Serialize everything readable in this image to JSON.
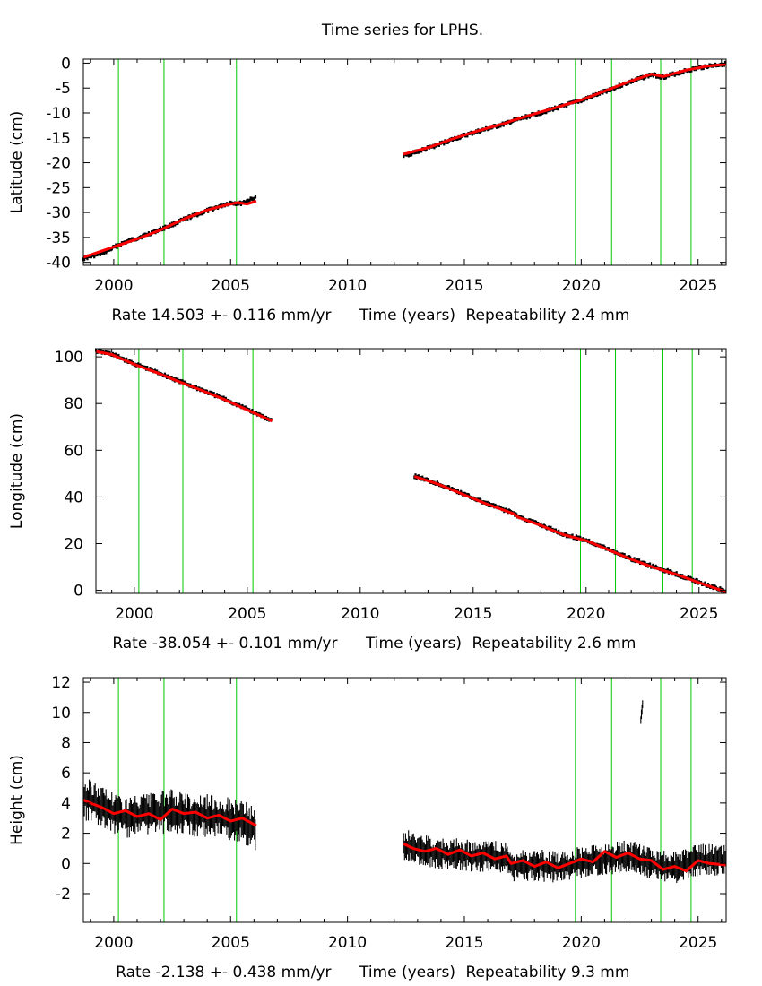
{
  "title": "Time series for LPHS.",
  "colors": {
    "observations": "#000000",
    "model": "#ff0000",
    "events": "#00c800",
    "axes": "#000000"
  },
  "chart_data": [
    {
      "type": "scatter",
      "panel": "latitude",
      "ylabel": "Latitude (cm)",
      "xlabel": "Time (years)",
      "rate_text": "Rate 14.503 +- 0.116 mm/yr",
      "repeat_text": "Repeatability 2.4 mm",
      "xlim": [
        1998.7,
        2026.2
      ],
      "ylim": [
        -40.6,
        0.8
      ],
      "xticks": [
        2000,
        2005,
        2010,
        2015,
        2020,
        2025
      ],
      "yticks": [
        0,
        -5,
        -10,
        -15,
        -20,
        -25,
        -30,
        -35,
        -40
      ],
      "event_lines": [
        2000.2,
        2002.15,
        2005.25,
        2019.75,
        2021.3,
        2023.4,
        2024.7
      ],
      "series": [
        {
          "name": "observations",
          "segments": [
            {
              "x": [
                1998.7,
                1999.5,
                2000.3,
                2001.2,
                2002.2,
                2003.2,
                2004.2,
                2005.0,
                2005.4,
                2006.1
              ],
              "y": [
                -39.2,
                -38.2,
                -36.3,
                -34.8,
                -33.0,
                -31.0,
                -29.3,
                -28.0,
                -28.2,
                -27.0
              ]
            },
            {
              "x": [
                2012.4,
                2013.5,
                2014.5,
                2015.5,
                2016.8,
                2017.0,
                2018.0,
                2019.0,
                2020.0,
                2021.0,
                2022.0,
                2023.0,
                2023.5,
                2024.5,
                2025.4,
                2026.2
              ],
              "y": [
                -18.6,
                -17.0,
                -15.3,
                -13.8,
                -12.1,
                -11.7,
                -10.3,
                -8.9,
                -7.5,
                -5.7,
                -3.9,
                -2.3,
                -2.8,
                -1.5,
                -0.6,
                -0.1
              ]
            }
          ]
        },
        {
          "name": "model",
          "segments": [
            {
              "x": [
                1998.7,
                2000.0,
                2001.0,
                2002.0,
                2003.0,
                2004.0,
                2004.8,
                2005.3,
                2005.7,
                2006.1
              ],
              "y": [
                -39.0,
                -36.9,
                -35.3,
                -33.5,
                -31.3,
                -29.5,
                -28.5,
                -28.0,
                -28.3,
                -27.7
              ]
            },
            {
              "x": [
                2012.4,
                2013.5,
                2014.5,
                2015.5,
                2016.8,
                2017.0,
                2018.0,
                2019.0,
                2020.0,
                2021.0,
                2022.0,
                2023.0,
                2023.5,
                2024.5,
                2025.4,
                2026.2
              ],
              "y": [
                -18.3,
                -16.9,
                -15.2,
                -13.7,
                -12.0,
                -11.6,
                -10.2,
                -8.8,
                -7.4,
                -5.6,
                -3.8,
                -2.2,
                -2.7,
                -1.4,
                -0.6,
                -0.2
              ]
            }
          ]
        }
      ]
    },
    {
      "type": "scatter",
      "panel": "longitude",
      "ylabel": "Longitude (cm)",
      "xlabel": "Time (years)",
      "rate_text": "Rate -38.054 +- 0.101 mm/yr",
      "repeat_text": "Repeatability 2.6 mm",
      "xlim": [
        1998.3,
        2026.2
      ],
      "ylim": [
        -1.3,
        103.5
      ],
      "xticks": [
        2000,
        2005,
        2010,
        2015,
        2020,
        2025
      ],
      "yticks": [
        0,
        20,
        40,
        60,
        80,
        100
      ],
      "event_lines": [
        2000.2,
        2002.15,
        2005.25,
        2019.75,
        2021.3,
        2023.4,
        2024.7
      ],
      "series": [
        {
          "name": "observations",
          "segments": [
            {
              "x": [
                1998.3,
                1999.0,
                2000.0,
                2001.0,
                2002.0,
                2003.0,
                2004.0,
                2005.0,
                2006.1
              ],
              "y": [
                102.5,
                101.2,
                97.0,
                93.4,
                89.5,
                85.8,
                81.9,
                77.5,
                72.7
              ]
            },
            {
              "x": [
                2012.4,
                2013.5,
                2014.5,
                2015.5,
                2016.8,
                2017.0,
                2018.0,
                2019.0,
                2020.0,
                2021.0,
                2022.0,
                2023.0,
                2024.0,
                2025.0,
                2026.2
              ],
              "y": [
                49.0,
                45.5,
                41.5,
                37.5,
                33.0,
                31.5,
                28.0,
                24.0,
                21.5,
                17.5,
                13.5,
                10.0,
                7.0,
                3.5,
                -0.5
              ]
            }
          ]
        },
        {
          "name": "model",
          "segments": [
            {
              "x": [
                1998.3,
                1999.0,
                2000.0,
                2001.0,
                2002.0,
                2003.0,
                2004.0,
                2005.0,
                2006.1
              ],
              "y": [
                102.3,
                101.0,
                96.8,
                93.2,
                89.3,
                85.6,
                81.7,
                77.3,
                72.5
              ]
            },
            {
              "x": [
                2012.4,
                2013.5,
                2014.5,
                2015.5,
                2016.8,
                2017.0,
                2018.0,
                2019.0,
                2020.0,
                2021.0,
                2022.0,
                2023.0,
                2024.0,
                2025.0,
                2026.2
              ],
              "y": [
                48.8,
                45.3,
                41.3,
                37.3,
                32.8,
                31.3,
                27.8,
                23.8,
                21.3,
                17.3,
                13.3,
                9.8,
                6.8,
                3.3,
                -0.7
              ]
            }
          ]
        }
      ]
    },
    {
      "type": "scatter",
      "panel": "height",
      "ylabel": "Height (cm)",
      "xlabel": "Time (years)",
      "rate_text": "Rate -2.138 +- 0.438 mm/yr",
      "repeat_text": "Repeatability 9.3 mm",
      "xlim": [
        1998.7,
        2026.2
      ],
      "ylim": [
        -3.9,
        12.3
      ],
      "xticks": [
        2000,
        2005,
        2010,
        2015,
        2020,
        2025
      ],
      "yticks": [
        12,
        10,
        8,
        6,
        4,
        2,
        0,
        -2
      ],
      "event_lines": [
        2000.2,
        2002.15,
        2005.25,
        2019.75,
        2021.3,
        2023.4,
        2024.7
      ],
      "series": [
        {
          "name": "observations",
          "segments": [
            {
              "x": [
                1998.7,
                1999.5,
                2000.5,
                2001.5,
                2002.5,
                2003.5,
                2004.5,
                2005.5,
                2006.1
              ],
              "y": [
                4.3,
                3.8,
                3.0,
                3.2,
                3.5,
                3.2,
                3.1,
                2.8,
                2.2
              ],
              "spread": 1.2
            },
            {
              "x": [
                2012.4,
                2013.5,
                2014.5,
                2015.5,
                2016.8,
                2017.0,
                2018.0,
                2019.0,
                2020.0,
                2021.0,
                2022.0,
                2023.0,
                2024.0,
                2025.0,
                2026.2
              ],
              "y": [
                1.2,
                0.8,
                0.6,
                0.5,
                0.4,
                -0.2,
                -0.1,
                -0.3,
                0.1,
                0.3,
                0.5,
                0.0,
                -0.3,
                0.2,
                0.3
              ],
              "spread": 0.9
            },
            {
              "x": [
                2022.55,
                2022.6,
                2022.65
              ],
              "y": [
                9.5,
                10.2,
                10.8
              ],
              "spread": 0.3
            }
          ]
        },
        {
          "name": "model",
          "segments": [
            {
              "x": [
                1998.7,
                1999.0,
                1999.5,
                2000.0,
                2000.5,
                2001.0,
                2001.5,
                2002.0,
                2002.5,
                2003.0,
                2003.5,
                2004.0,
                2004.5,
                2005.0,
                2005.5,
                2006.1
              ],
              "y": [
                4.2,
                4.0,
                3.7,
                3.3,
                3.5,
                3.1,
                3.3,
                2.9,
                3.6,
                3.3,
                3.4,
                3.0,
                3.2,
                2.8,
                3.0,
                2.5
              ]
            },
            {
              "x": [
                2012.4,
                2012.8,
                2013.3,
                2013.8,
                2014.3,
                2014.8,
                2015.3,
                2015.8,
                2016.3,
                2016.8,
                2017.0,
                2017.5,
                2018.0,
                2018.5,
                2019.0,
                2019.5,
                2020.0,
                2020.5,
                2021.0,
                2021.5,
                2022.0,
                2022.5,
                2023.0,
                2023.5,
                2024.0,
                2024.5,
                2025.0,
                2025.5,
                2026.2
              ],
              "y": [
                1.3,
                1.0,
                0.8,
                1.0,
                0.6,
                0.9,
                0.5,
                0.7,
                0.3,
                0.5,
                0.0,
                0.2,
                -0.2,
                0.1,
                -0.3,
                0.0,
                0.3,
                0.1,
                0.8,
                0.4,
                0.7,
                0.3,
                0.2,
                -0.4,
                -0.2,
                -0.5,
                0.2,
                0.0,
                -0.1
              ]
            }
          ]
        }
      ]
    }
  ]
}
